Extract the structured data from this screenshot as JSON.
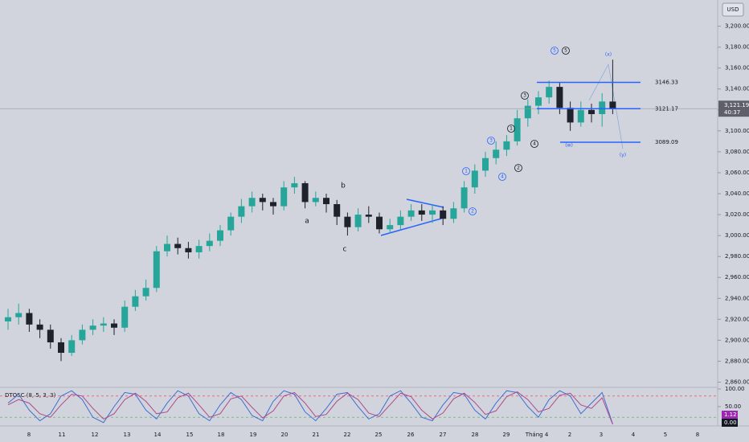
{
  "chart_data": {
    "type": "candlestick",
    "currency": "USD",
    "categories": [
      "8",
      "11",
      "12",
      "13",
      "14",
      "15",
      "18",
      "19",
      "20",
      "21",
      "22",
      "25",
      "26",
      "27",
      "28",
      "29",
      "Tháng 4",
      "2",
      "3",
      "4",
      "5",
      "8"
    ],
    "candles": {
      "open": [
        2918,
        2922,
        2926,
        2915,
        2910,
        2898,
        2888,
        2900,
        2910,
        2914,
        2916,
        2912,
        2932,
        2942,
        2950,
        2985,
        2992,
        2988,
        2984,
        2990,
        2995,
        3005,
        3018,
        3028,
        3036,
        3032,
        3028,
        3046,
        3050,
        3032,
        3036,
        3030,
        3018,
        3008,
        3020,
        3018,
        3006,
        3010,
        3018,
        3024,
        3020,
        3024,
        3016,
        3026,
        3046,
        3062,
        3074,
        3082,
        3090,
        3112,
        3124,
        3132,
        3142,
        3122,
        3108,
        3120,
        3116,
        3128
      ],
      "high": [
        2930,
        2935,
        2930,
        2920,
        2915,
        2902,
        2905,
        2915,
        2920,
        2922,
        2920,
        2938,
        2948,
        2958,
        2990,
        3000,
        2998,
        2994,
        2996,
        3002,
        3010,
        3022,
        3035,
        3042,
        3040,
        3036,
        3052,
        3056,
        3052,
        3042,
        3040,
        3034,
        3022,
        3026,
        3028,
        3022,
        3016,
        3024,
        3030,
        3030,
        3030,
        3028,
        3032,
        3052,
        3068,
        3080,
        3090,
        3096,
        3120,
        3130,
        3138,
        3148,
        3146,
        3128,
        3128,
        3126,
        3136,
        3168
      ],
      "low": [
        2910,
        2915,
        2908,
        2902,
        2892,
        2880,
        2885,
        2896,
        2905,
        2908,
        2905,
        2908,
        2928,
        2938,
        2946,
        2980,
        2982,
        2978,
        2978,
        2985,
        2990,
        3000,
        3012,
        3022,
        3024,
        3020,
        3024,
        3040,
        3026,
        3028,
        3022,
        3010,
        3000,
        3004,
        3012,
        3002,
        3002,
        3006,
        3014,
        3014,
        3012,
        3010,
        3012,
        3022,
        3040,
        3056,
        3068,
        3076,
        3086,
        3104,
        3116,
        3126,
        3116,
        3100,
        3104,
        3108,
        3104,
        3116
      ],
      "close": [
        2922,
        2926,
        2915,
        2910,
        2898,
        2888,
        2900,
        2910,
        2914,
        2916,
        2912,
        2932,
        2942,
        2950,
        2985,
        2992,
        2988,
        2984,
        2990,
        2995,
        3005,
        3018,
        3028,
        3036,
        3032,
        3028,
        3046,
        3050,
        3032,
        3036,
        3030,
        3018,
        3008,
        3020,
        3018,
        3006,
        3010,
        3018,
        3024,
        3020,
        3024,
        3016,
        3026,
        3046,
        3062,
        3074,
        3082,
        3090,
        3112,
        3124,
        3132,
        3142,
        3122,
        3108,
        3120,
        3116,
        3128,
        3121
      ]
    },
    "up_color": "#26a69a",
    "down_color": "#1e222d",
    "ylim": [
      2855,
      3225
    ],
    "yticks": [
      {
        "value": 2860,
        "label": "2,860.00"
      },
      {
        "value": 2880,
        "label": "2,880.00"
      },
      {
        "value": 2900,
        "label": "2,900.00"
      },
      {
        "value": 2920,
        "label": "2,920.00"
      },
      {
        "value": 2940,
        "label": "2,940.00"
      },
      {
        "value": 2960,
        "label": "2,960.00"
      },
      {
        "value": 2980,
        "label": "2,980.00"
      },
      {
        "value": 3000,
        "label": "3,000.00"
      },
      {
        "value": 3020,
        "label": "3,020.00"
      },
      {
        "value": 3040,
        "label": "3,040.00"
      },
      {
        "value": 3060,
        "label": "3,060.00"
      },
      {
        "value": 3080,
        "label": "3,080.00"
      },
      {
        "value": 3100,
        "label": "3,100.00"
      },
      {
        "value": 3120,
        "label": "3,120.00"
      },
      {
        "value": 3140,
        "label": "3,140.00"
      },
      {
        "value": 3160,
        "label": "3,160.00"
      },
      {
        "value": 3180,
        "label": "3,180.00"
      },
      {
        "value": 3200,
        "label": "3,200.00"
      }
    ],
    "levels": [
      {
        "value": 3146.33,
        "label": "3146.33"
      },
      {
        "value": 3121.17,
        "label": "3121.17"
      },
      {
        "value": 3089.09,
        "label": "3089.09"
      }
    ],
    "last_price": {
      "value": 3121.19,
      "label": "3,121.19"
    },
    "countdown": "40:37",
    "wave_labels": [
      "a",
      "b",
      "c",
      "1",
      "2",
      "3",
      "4",
      "5",
      "1",
      "2",
      "3",
      "4",
      "5",
      "(x)",
      "(w)",
      "(y)"
    ],
    "oscillator": {
      "title": "DTOSC (8, 5, 3, 3)",
      "ylim": [
        0,
        100
      ],
      "yticks": [
        {
          "value": 100,
          "label": "100.00"
        },
        {
          "value": 50,
          "label": "50.00"
        }
      ],
      "bands": [
        80,
        20
      ],
      "series": [
        {
          "name": "fast",
          "color": "#3f6fd1",
          "values": [
            60,
            85,
            40,
            10,
            30,
            80,
            95,
            70,
            20,
            5,
            50,
            90,
            85,
            40,
            15,
            60,
            95,
            80,
            30,
            10,
            55,
            90,
            70,
            25,
            10,
            65,
            95,
            85,
            35,
            10,
            45,
            85,
            90,
            50,
            15,
            30,
            80,
            95,
            60,
            20,
            10,
            55,
            90,
            85,
            40,
            15,
            60,
            95,
            90,
            50,
            20,
            70,
            95,
            80,
            30,
            60,
            90,
            1.12
          ]
        },
        {
          "name": "slow",
          "color": "#b0488a",
          "values": [
            55,
            70,
            60,
            30,
            20,
            55,
            85,
            80,
            45,
            15,
            30,
            70,
            88,
            65,
            30,
            35,
            75,
            88,
            55,
            20,
            30,
            72,
            80,
            48,
            18,
            38,
            80,
            90,
            60,
            22,
            28,
            65,
            88,
            70,
            32,
            22,
            55,
            88,
            78,
            40,
            15,
            32,
            72,
            88,
            62,
            28,
            38,
            78,
            92,
            70,
            35,
            45,
            82,
            88,
            55,
            45,
            75,
            0
          ]
        }
      ],
      "markers": [
        {
          "value": 1.12,
          "label": "1.12"
        },
        {
          "value": 0,
          "label": "0.00"
        }
      ]
    }
  }
}
